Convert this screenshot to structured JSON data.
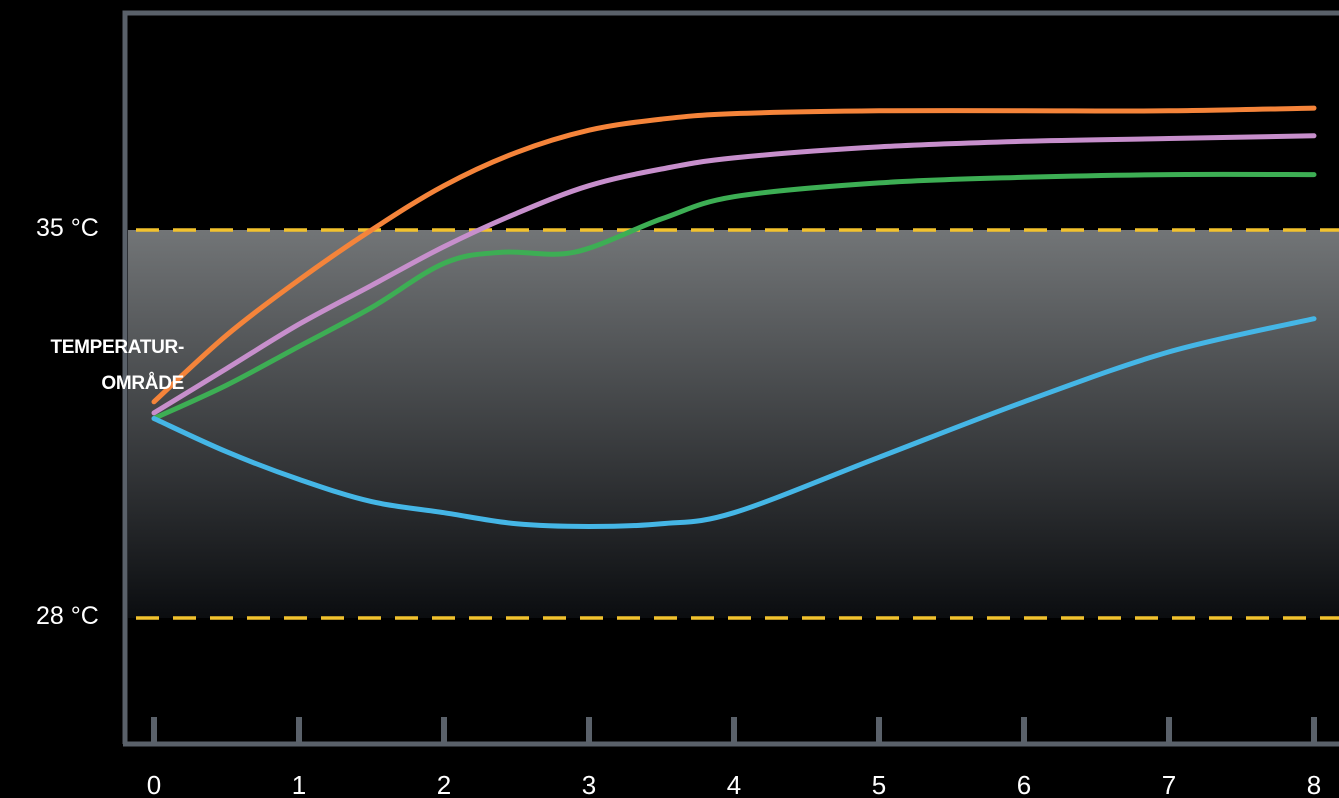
{
  "chart_data": {
    "type": "line",
    "title": "",
    "xlabel": "",
    "ylabel": "",
    "x_ticks": [
      "0",
      "1",
      "2",
      "3",
      "4",
      "5",
      "6",
      "7",
      "8"
    ],
    "xlim": [
      0,
      8
    ],
    "ylim": [
      24.5,
      39
    ],
    "band": {
      "low": 28,
      "high": 35,
      "label_low": "28 °C",
      "label_high": "35 °C"
    },
    "region_label": [
      "TEMPERATUR-",
      "OMRÅDE"
    ],
    "series": [
      {
        "color": "#f5843a",
        "x": [
          0,
          0.5,
          1,
          1.5,
          2,
          2.5,
          3,
          3.5,
          4,
          5,
          6,
          7,
          8
        ],
        "y": [
          31.9,
          33.1,
          34.1,
          35.0,
          35.8,
          36.4,
          36.8,
          37.0,
          37.1,
          37.15,
          37.15,
          37.15,
          37.2
        ]
      },
      {
        "color": "#c78fcc",
        "x": [
          0,
          0.5,
          1,
          1.5,
          2,
          2.5,
          3,
          3.5,
          4,
          5,
          6,
          7,
          8
        ],
        "y": [
          31.7,
          32.5,
          33.3,
          34.0,
          34.7,
          35.3,
          35.8,
          36.1,
          36.3,
          36.5,
          36.6,
          36.65,
          36.7
        ]
      },
      {
        "color": "#3dae54",
        "x": [
          0,
          0.5,
          1,
          1.5,
          2,
          2.4,
          2.9,
          3.5,
          4,
          5,
          6,
          7,
          8
        ],
        "y": [
          31.6,
          32.2,
          32.9,
          33.6,
          34.4,
          34.6,
          34.6,
          35.2,
          35.6,
          35.85,
          35.95,
          36.0,
          36.0
        ]
      },
      {
        "color": "#45b6e6",
        "x": [
          0,
          0.5,
          1,
          1.5,
          2,
          2.5,
          3,
          3.5,
          4,
          5,
          6,
          7,
          8
        ],
        "y": [
          31.6,
          31.0,
          30.5,
          30.1,
          29.9,
          29.7,
          29.65,
          29.7,
          29.9,
          30.9,
          31.9,
          32.8,
          33.4
        ]
      }
    ],
    "grid": false,
    "legend": "none",
    "colors": {
      "background": "#000000",
      "axis": "#5a616a",
      "band_top": "#727577",
      "band_bottom": "#0b0d10",
      "threshold": "#f2c22e",
      "text": "#ffffff"
    }
  }
}
